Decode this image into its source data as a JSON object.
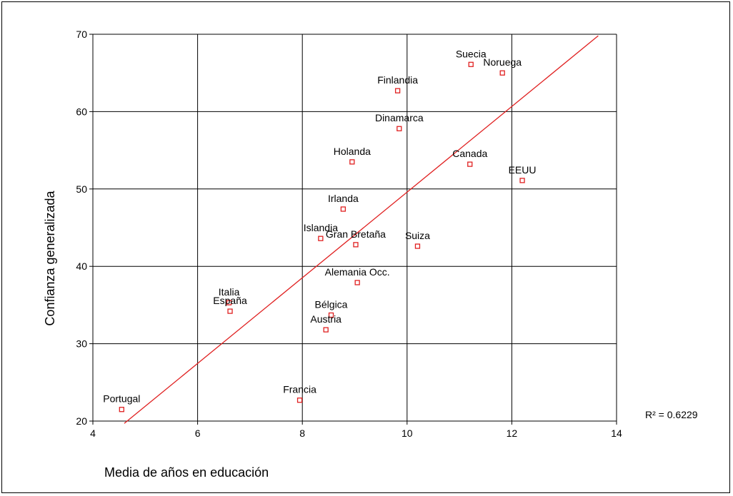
{
  "chart_data": {
    "type": "scatter",
    "xlabel": "Media de años en educación",
    "ylabel": "Confianza generalizada",
    "xlim": [
      4,
      14
    ],
    "ylim": [
      20,
      70
    ],
    "x_ticks": [
      "4",
      "6",
      "8",
      "10",
      "12",
      "14"
    ],
    "y_ticks": [
      "20",
      "30",
      "40",
      "50",
      "60",
      "70"
    ],
    "grid": true,
    "points": [
      {
        "label": "Portugal",
        "x": 4.55,
        "y": 21.5
      },
      {
        "label": "Francia",
        "x": 7.95,
        "y": 22.7
      },
      {
        "label": "Italia",
        "x": 6.6,
        "y": 35.3
      },
      {
        "label": "España",
        "x": 6.62,
        "y": 34.2
      },
      {
        "label": "Austria",
        "x": 8.45,
        "y": 31.8
      },
      {
        "label": "Bélgica",
        "x": 8.55,
        "y": 33.7
      },
      {
        "label": "Alemania Occ.",
        "x": 9.05,
        "y": 37.9
      },
      {
        "label": "Islandia",
        "x": 8.35,
        "y": 43.6
      },
      {
        "label": "Gran Bretaña",
        "x": 9.02,
        "y": 42.8
      },
      {
        "label": "Suiza",
        "x": 10.2,
        "y": 42.6
      },
      {
        "label": "Irlanda",
        "x": 8.78,
        "y": 47.4
      },
      {
        "label": "Holanda",
        "x": 8.95,
        "y": 53.5
      },
      {
        "label": "Canada",
        "x": 11.2,
        "y": 53.2
      },
      {
        "label": "EEUU",
        "x": 12.2,
        "y": 51.1
      },
      {
        "label": "Dinamarca",
        "x": 9.85,
        "y": 57.8
      },
      {
        "label": "Finlandia",
        "x": 9.82,
        "y": 62.7
      },
      {
        "label": "Suecia",
        "x": 11.22,
        "y": 66.1
      },
      {
        "label": "Noruega",
        "x": 11.82,
        "y": 65.0
      }
    ],
    "fit_line": {
      "start": [
        4.6,
        19.7
      ],
      "end": [
        13.65,
        69.8
      ]
    },
    "r_squared_label": "R² = 0.6229",
    "marker_color": "#e02020",
    "line_color": "#e02020"
  }
}
